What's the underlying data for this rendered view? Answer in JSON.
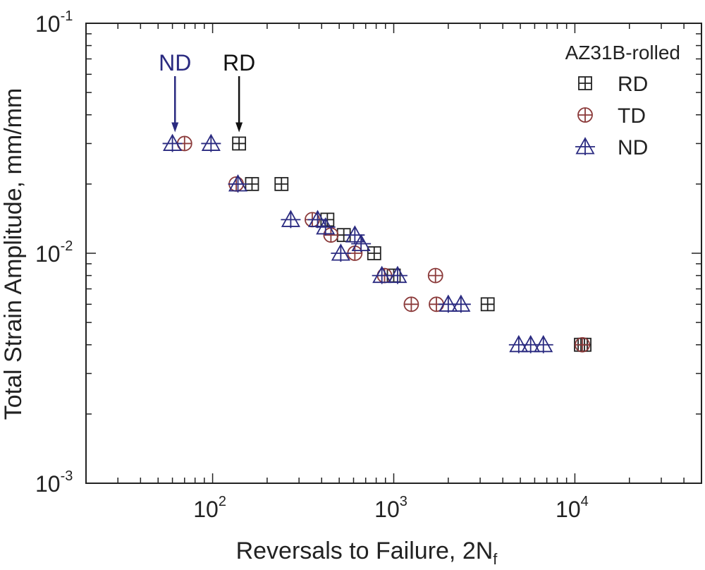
{
  "chart_data": {
    "type": "scatter",
    "xscale": "log",
    "yscale": "log",
    "xlim": [
      20,
      50000
    ],
    "ylim": [
      0.001,
      0.1
    ],
    "xlabel": "Reversals to Failure, 2N",
    "xlabel_sub": "f",
    "ylabel": "Total Strain Amplitude, mm/mm",
    "x_ticks": [
      {
        "value": 100,
        "base": "10",
        "exp": "2"
      },
      {
        "value": 1000,
        "base": "10",
        "exp": "3"
      },
      {
        "value": 10000,
        "base": "10",
        "exp": "4"
      }
    ],
    "y_ticks": [
      {
        "value": 0.1,
        "base": "10",
        "exp": "-1"
      },
      {
        "value": 0.01,
        "base": "10",
        "exp": "-2"
      },
      {
        "value": 0.001,
        "base": "10",
        "exp": "-3"
      }
    ],
    "grid": false,
    "legend": {
      "title": "AZ31B-rolled",
      "position": "top-right"
    },
    "annotations": [
      {
        "text": "ND",
        "x": 62,
        "y": 0.03,
        "color": "#2a2a80"
      },
      {
        "text": "RD",
        "x": 140,
        "y": 0.03,
        "color": "#111111"
      }
    ],
    "series": [
      {
        "name": "RD",
        "marker": "square-plus",
        "color": "#222222",
        "points": [
          {
            "x": 140,
            "y": 0.03
          },
          {
            "x": 165,
            "y": 0.02
          },
          {
            "x": 240,
            "y": 0.02
          },
          {
            "x": 430,
            "y": 0.014
          },
          {
            "x": 530,
            "y": 0.012
          },
          {
            "x": 780,
            "y": 0.01
          },
          {
            "x": 1000,
            "y": 0.008
          },
          {
            "x": 3300,
            "y": 0.006
          },
          {
            "x": 10800,
            "y": 0.004
          },
          {
            "x": 11300,
            "y": 0.004
          }
        ]
      },
      {
        "name": "TD",
        "marker": "circle-plus",
        "color": "#8b3a3a",
        "points": [
          {
            "x": 70,
            "y": 0.03
          },
          {
            "x": 135,
            "y": 0.02
          },
          {
            "x": 355,
            "y": 0.014
          },
          {
            "x": 450,
            "y": 0.012
          },
          {
            "x": 610,
            "y": 0.01
          },
          {
            "x": 890,
            "y": 0.008
          },
          {
            "x": 1700,
            "y": 0.008
          },
          {
            "x": 1250,
            "y": 0.006
          },
          {
            "x": 1720,
            "y": 0.006
          },
          {
            "x": 11000,
            "y": 0.004
          }
        ]
      },
      {
        "name": "ND",
        "marker": "triangle-plus",
        "color": "#2a2a80",
        "points": [
          {
            "x": 60,
            "y": 0.03
          },
          {
            "x": 98,
            "y": 0.03
          },
          {
            "x": 138,
            "y": 0.02
          },
          {
            "x": 270,
            "y": 0.014
          },
          {
            "x": 380,
            "y": 0.014
          },
          {
            "x": 420,
            "y": 0.013
          },
          {
            "x": 510,
            "y": 0.01
          },
          {
            "x": 610,
            "y": 0.012
          },
          {
            "x": 660,
            "y": 0.011
          },
          {
            "x": 860,
            "y": 0.008
          },
          {
            "x": 1050,
            "y": 0.008
          },
          {
            "x": 2000,
            "y": 0.006
          },
          {
            "x": 2350,
            "y": 0.006
          },
          {
            "x": 4900,
            "y": 0.004
          },
          {
            "x": 5700,
            "y": 0.004
          },
          {
            "x": 6700,
            "y": 0.004
          }
        ]
      }
    ]
  }
}
